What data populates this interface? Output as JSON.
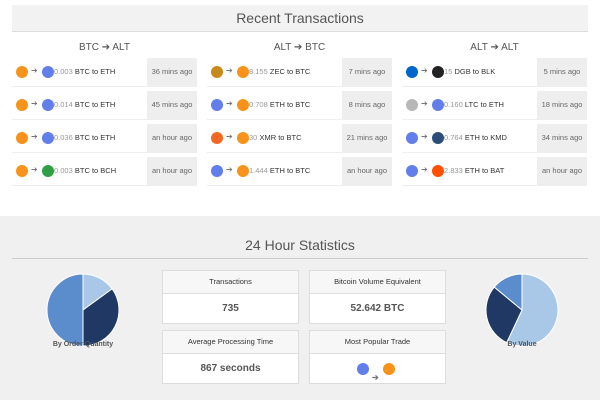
{
  "recent": {
    "title": "Recent Transactions",
    "columns": [
      {
        "title": "BTC ➔ ALT",
        "rows": [
          {
            "icons": [
              "#f7931a",
              "#627eea"
            ],
            "amount": "0.003",
            "pair": "BTC to ETH",
            "time": "36 mins ago"
          },
          {
            "icons": [
              "#f7931a",
              "#627eea"
            ],
            "amount": "0.014",
            "pair": "BTC to ETH",
            "time": "45 mins ago"
          },
          {
            "icons": [
              "#f7931a",
              "#627eea"
            ],
            "amount": "0.036",
            "pair": "BTC to ETH",
            "time": "an hour ago"
          },
          {
            "icons": [
              "#f7931a",
              "#2ea043"
            ],
            "amount": "0.003",
            "pair": "BTC to BCH",
            "time": "an hour ago"
          }
        ]
      },
      {
        "title": "ALT ➔ BTC",
        "rows": [
          {
            "icons": [
              "#c78a1a",
              "#f7931a"
            ],
            "amount": "8.155",
            "pair": "ZEC to BTC",
            "time": "7 mins ago"
          },
          {
            "icons": [
              "#627eea",
              "#f7931a"
            ],
            "amount": "0.708",
            "pair": "ETH to BTC",
            "time": "8 mins ago"
          },
          {
            "icons": [
              "#f26822",
              "#f7931a"
            ],
            "amount": "30",
            "pair": "XMR to BTC",
            "time": "21 mins ago"
          },
          {
            "icons": [
              "#627eea",
              "#f7931a"
            ],
            "amount": "1.444",
            "pair": "ETH to BTC",
            "time": "an hour ago"
          }
        ]
      },
      {
        "title": "ALT ➔ ALT",
        "rows": [
          {
            "icons": [
              "#0066cc",
              "#222222"
            ],
            "amount": "15",
            "pair": "DGB to BLK",
            "time": "5 mins ago"
          },
          {
            "icons": [
              "#b8b8b8",
              "#627eea"
            ],
            "amount": "0.160",
            "pair": "LTC to ETH",
            "time": "18 mins ago"
          },
          {
            "icons": [
              "#627eea",
              "#2a4d7a"
            ],
            "amount": "0.764",
            "pair": "ETH to KMD",
            "time": "34 mins ago"
          },
          {
            "icons": [
              "#627eea",
              "#ff5000"
            ],
            "amount": "2.833",
            "pair": "ETH to BAT",
            "time": "an hour ago"
          }
        ]
      }
    ]
  },
  "statistics": {
    "title": "24 Hour Statistics",
    "pies": [
      {
        "type": "pie",
        "label": "By Order Quantity",
        "values": [
          15,
          35,
          50
        ],
        "colors": [
          "#a9c8e8",
          "#1f3864",
          "#5b8ccc"
        ]
      },
      {
        "type": "pie",
        "label": "By Value",
        "values": [
          57,
          29,
          14
        ],
        "colors": [
          "#a9c8e8",
          "#1f3864",
          "#5b8ccc"
        ]
      }
    ],
    "cards": [
      {
        "title": "Transactions",
        "value": "735"
      },
      {
        "title": "Bitcoin Volume Equivalent",
        "value": "52.642 BTC"
      },
      {
        "title": "Average Processing Time",
        "value": "867 seconds"
      },
      {
        "title": "Most Popular Trade",
        "icons": [
          "#627eea",
          "#f7931a"
        ]
      }
    ]
  }
}
